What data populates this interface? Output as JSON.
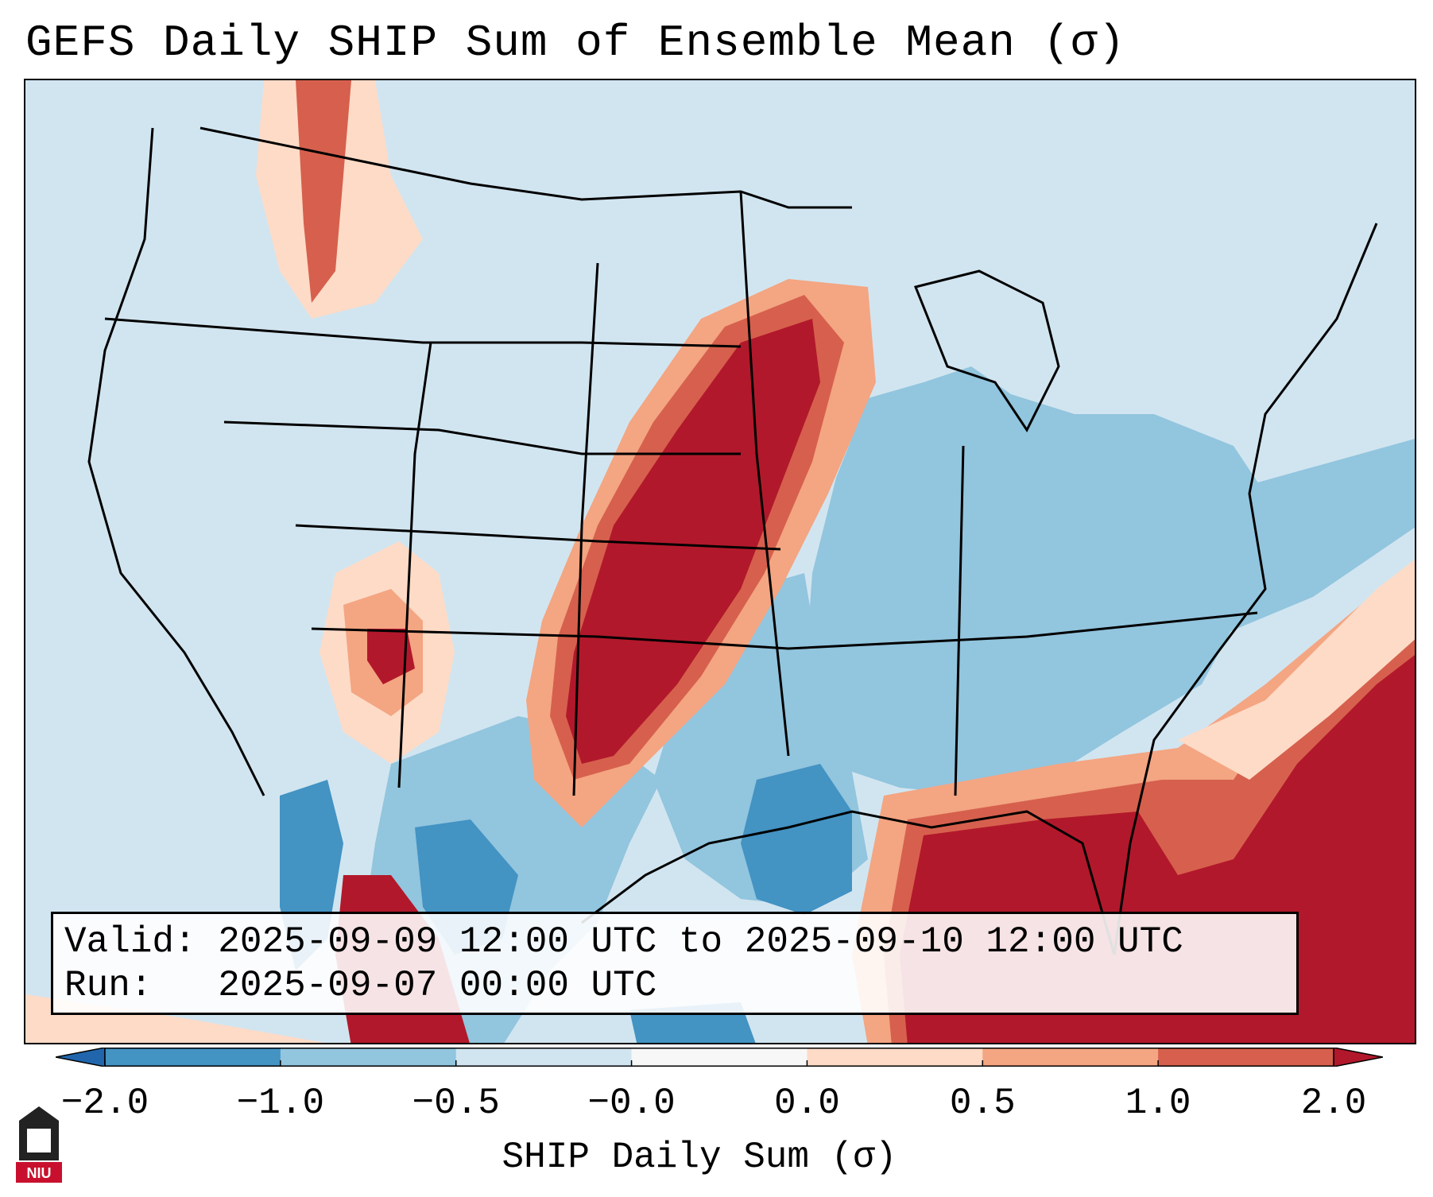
{
  "title": "GEFS Daily SHIP Sum of Ensemble Mean (σ)",
  "info_box": {
    "valid_label": "Valid:",
    "valid_value": "2025-09-09 12:00 UTC to 2025-09-10 12:00 UTC",
    "run_label": "Run:",
    "run_value": "2025-09-07 00:00 UTC"
  },
  "colorbar": {
    "label": "SHIP Daily Sum (σ)",
    "ticks": [
      "−2.0",
      "−1.0",
      "−0.5",
      "−0.0",
      "0.0",
      "0.5",
      "1.0",
      "2.0"
    ],
    "bins": [
      {
        "range": "below -2.0",
        "color": "#2166ac"
      },
      {
        "range": "-2.0 to -1.0",
        "color": "#4393c3"
      },
      {
        "range": "-1.0 to -0.5",
        "color": "#92c5de"
      },
      {
        "range": "-0.5 to -0.0",
        "color": "#d1e5f0"
      },
      {
        "range": "-0.0 to 0.0",
        "color": "#f7f7f7"
      },
      {
        "range": "0.0 to 0.5",
        "color": "#fddbc7"
      },
      {
        "range": "0.5 to 1.0",
        "color": "#f4a582"
      },
      {
        "range": "1.0 to 2.0",
        "color": "#d6604d"
      },
      {
        "range": "above 2.0",
        "color": "#b2182b"
      }
    ]
  },
  "map": {
    "region": "Contiguous United States, northern Mexico and Gulf of Mexico",
    "highlights": [
      {
        "area": "Central Plains (Dakotas, Nebraska, Kansas, western Oklahoma, eastern New Mexico)",
        "sigma": "above 2.0"
      },
      {
        "area": "Gulf of Mexico and Florida",
        "sigma": "above 2.0"
      },
      {
        "area": "Western Atlantic",
        "sigma": "1.0 to above 2.0"
      },
      {
        "area": "Four Corners / Utah",
        "sigma": "0.5 to above 2.0"
      },
      {
        "area": "Southern Plains / Lower Mississippi Valley",
        "sigma": "-2.0 to -1.0"
      }
    ]
  },
  "logo": {
    "text": "NIU"
  }
}
